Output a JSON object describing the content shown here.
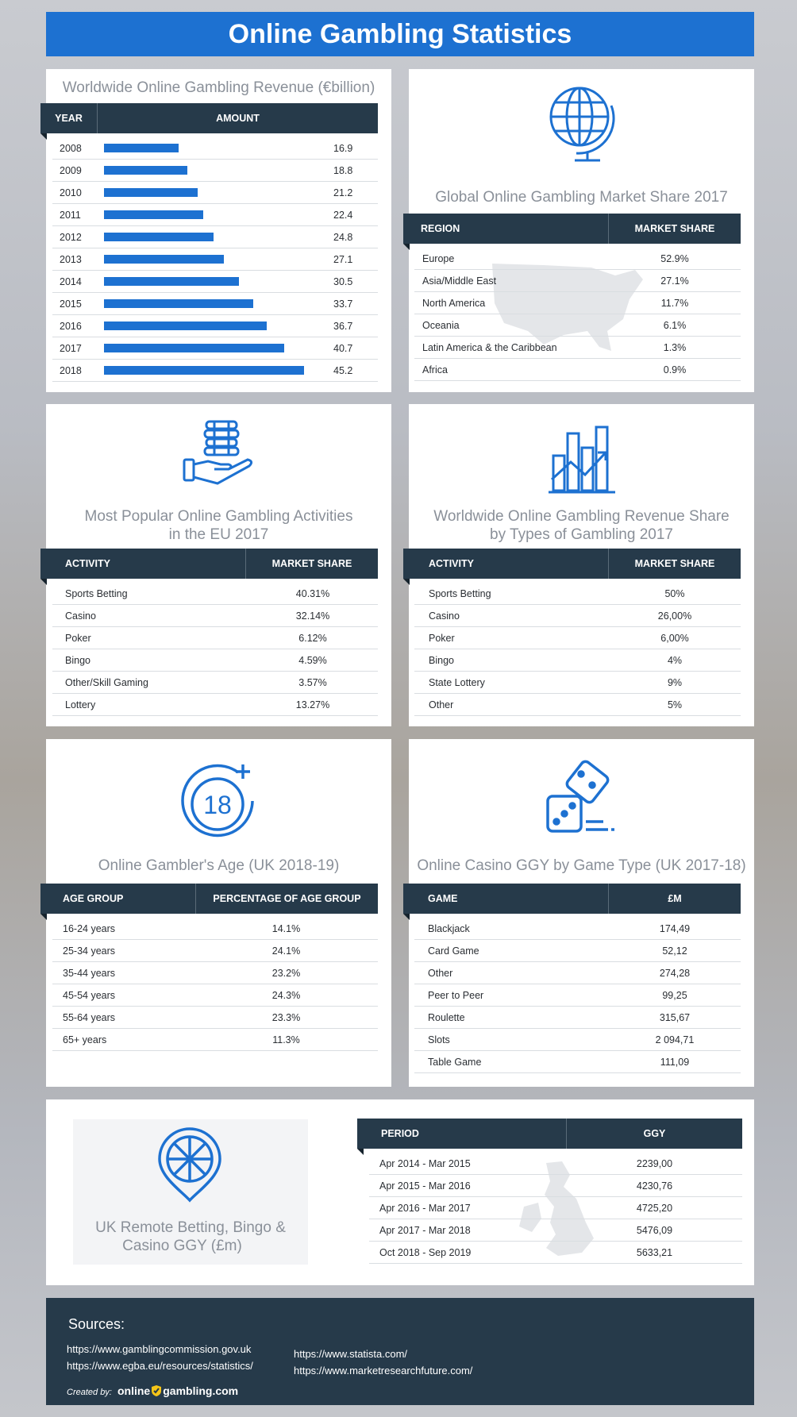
{
  "header": {
    "title": "Online Gambling Statistics"
  },
  "revenue": {
    "title": "Worldwide Online Gambling Revenue (€billion)",
    "col_year": "YEAR",
    "col_amount": "AMOUNT"
  },
  "chart_data": {
    "type": "bar",
    "title": "Worldwide Online Gambling Revenue (€billion)",
    "xlabel": "YEAR",
    "ylabel": "AMOUNT",
    "categories": [
      "2008",
      "2009",
      "2010",
      "2011",
      "2012",
      "2013",
      "2014",
      "2015",
      "2016",
      "2017",
      "2018"
    ],
    "values": [
      16.9,
      18.8,
      21.2,
      22.4,
      24.8,
      27.1,
      30.5,
      33.7,
      36.7,
      40.7,
      45.2
    ],
    "labels": [
      "16.9",
      "18.8",
      "21.2",
      "22.4",
      "24.8",
      "27.1",
      "30.5",
      "33.7",
      "36.7",
      "40.7",
      "45.2"
    ]
  },
  "market_share": {
    "title": "Global Online Gambling Market Share 2017",
    "col1": "REGION",
    "col2": "MARKET SHARE",
    "rows": [
      [
        "Europe",
        "52.9%"
      ],
      [
        "Asia/Middle East",
        "27.1%"
      ],
      [
        "North America",
        "11.7%"
      ],
      [
        "Oceania",
        "6.1%"
      ],
      [
        "Latin America & the Caribbean",
        "1.3%"
      ],
      [
        "Africa",
        "0.9%"
      ]
    ]
  },
  "activities_eu": {
    "title_line1": "Most Popular Online Gambling Activities",
    "title_line2": "in the EU 2017",
    "col1": "ACTIVITY",
    "col2": "MARKET SHARE",
    "rows": [
      [
        "Sports Betting",
        "40.31%"
      ],
      [
        "Casino",
        "32.14%"
      ],
      [
        "Poker",
        "6.12%"
      ],
      [
        "Bingo",
        "4.59%"
      ],
      [
        "Other/Skill Gaming",
        "3.57%"
      ],
      [
        "Lottery",
        "13.27%"
      ]
    ]
  },
  "revenue_types": {
    "title_line1": "Worldwide Online Gambling Revenue Share",
    "title_line2": "by Types of Gambling 2017",
    "col1": "ACTIVITY",
    "col2": "MARKET SHARE",
    "rows": [
      [
        "Sports Betting",
        "50%"
      ],
      [
        "Casino",
        "26,00%"
      ],
      [
        "Poker",
        "6,00%"
      ],
      [
        "Bingo",
        "4%"
      ],
      [
        "State Lottery",
        "9%"
      ],
      [
        "Other",
        "5%"
      ]
    ]
  },
  "age": {
    "title": "Online Gambler's Age (UK 2018-19)",
    "icon_text": "18",
    "col1": "AGE GROUP",
    "col2": "PERCENTAGE OF AGE GROUP",
    "rows": [
      [
        "16-24 years",
        "14.1%"
      ],
      [
        "25-34 years",
        "24.1%"
      ],
      [
        "35-44 years",
        "23.2%"
      ],
      [
        "45-54 years",
        "24.3%"
      ],
      [
        "55-64 years",
        "23.3%"
      ],
      [
        "65+ years",
        "11.3%"
      ]
    ]
  },
  "casino": {
    "title": "Online Casino GGY by Game Type (UK 2017-18)",
    "col1": "GAME",
    "col2": "£M",
    "rows": [
      [
        "Blackjack",
        "174,49"
      ],
      [
        "Card Game",
        "52,12"
      ],
      [
        "Other",
        "274,28"
      ],
      [
        "Peer to Peer",
        "99,25"
      ],
      [
        "Roulette",
        "315,67"
      ],
      [
        "Slots",
        "2 094,71"
      ],
      [
        "Table Game",
        "111,09"
      ]
    ]
  },
  "uk_remote": {
    "title_line1": "UK Remote Betting, Bingo &",
    "title_line2": "Casino GGY (£m)",
    "col1": "PERIOD",
    "col2": "GGY",
    "rows": [
      [
        "Apr 2014 - Mar 2015",
        "2239,00"
      ],
      [
        "Apr 2015 - Mar 2016",
        "4230,76"
      ],
      [
        "Apr 2016 - Mar 2017",
        "4725,20"
      ],
      [
        "Apr 2017 - Mar 2018",
        "5476,09"
      ],
      [
        "Oct 2018 - Sep 2019",
        "5633,21"
      ]
    ]
  },
  "footer": {
    "heading": "Sources:",
    "links_left": [
      "https://www.gamblingcommission.gov.uk",
      "https://www.egba.eu/resources/statistics/"
    ],
    "links_right": [
      "https://www.statista.com/",
      "https://www.marketresearchfuture.com/"
    ],
    "created_by": "Created by:",
    "brand_part1": "online",
    "brand_part2": "gambling.com"
  },
  "colors": {
    "accent": "#1d71d1",
    "dark": "#263a4a",
    "muted": "#8a9099"
  }
}
